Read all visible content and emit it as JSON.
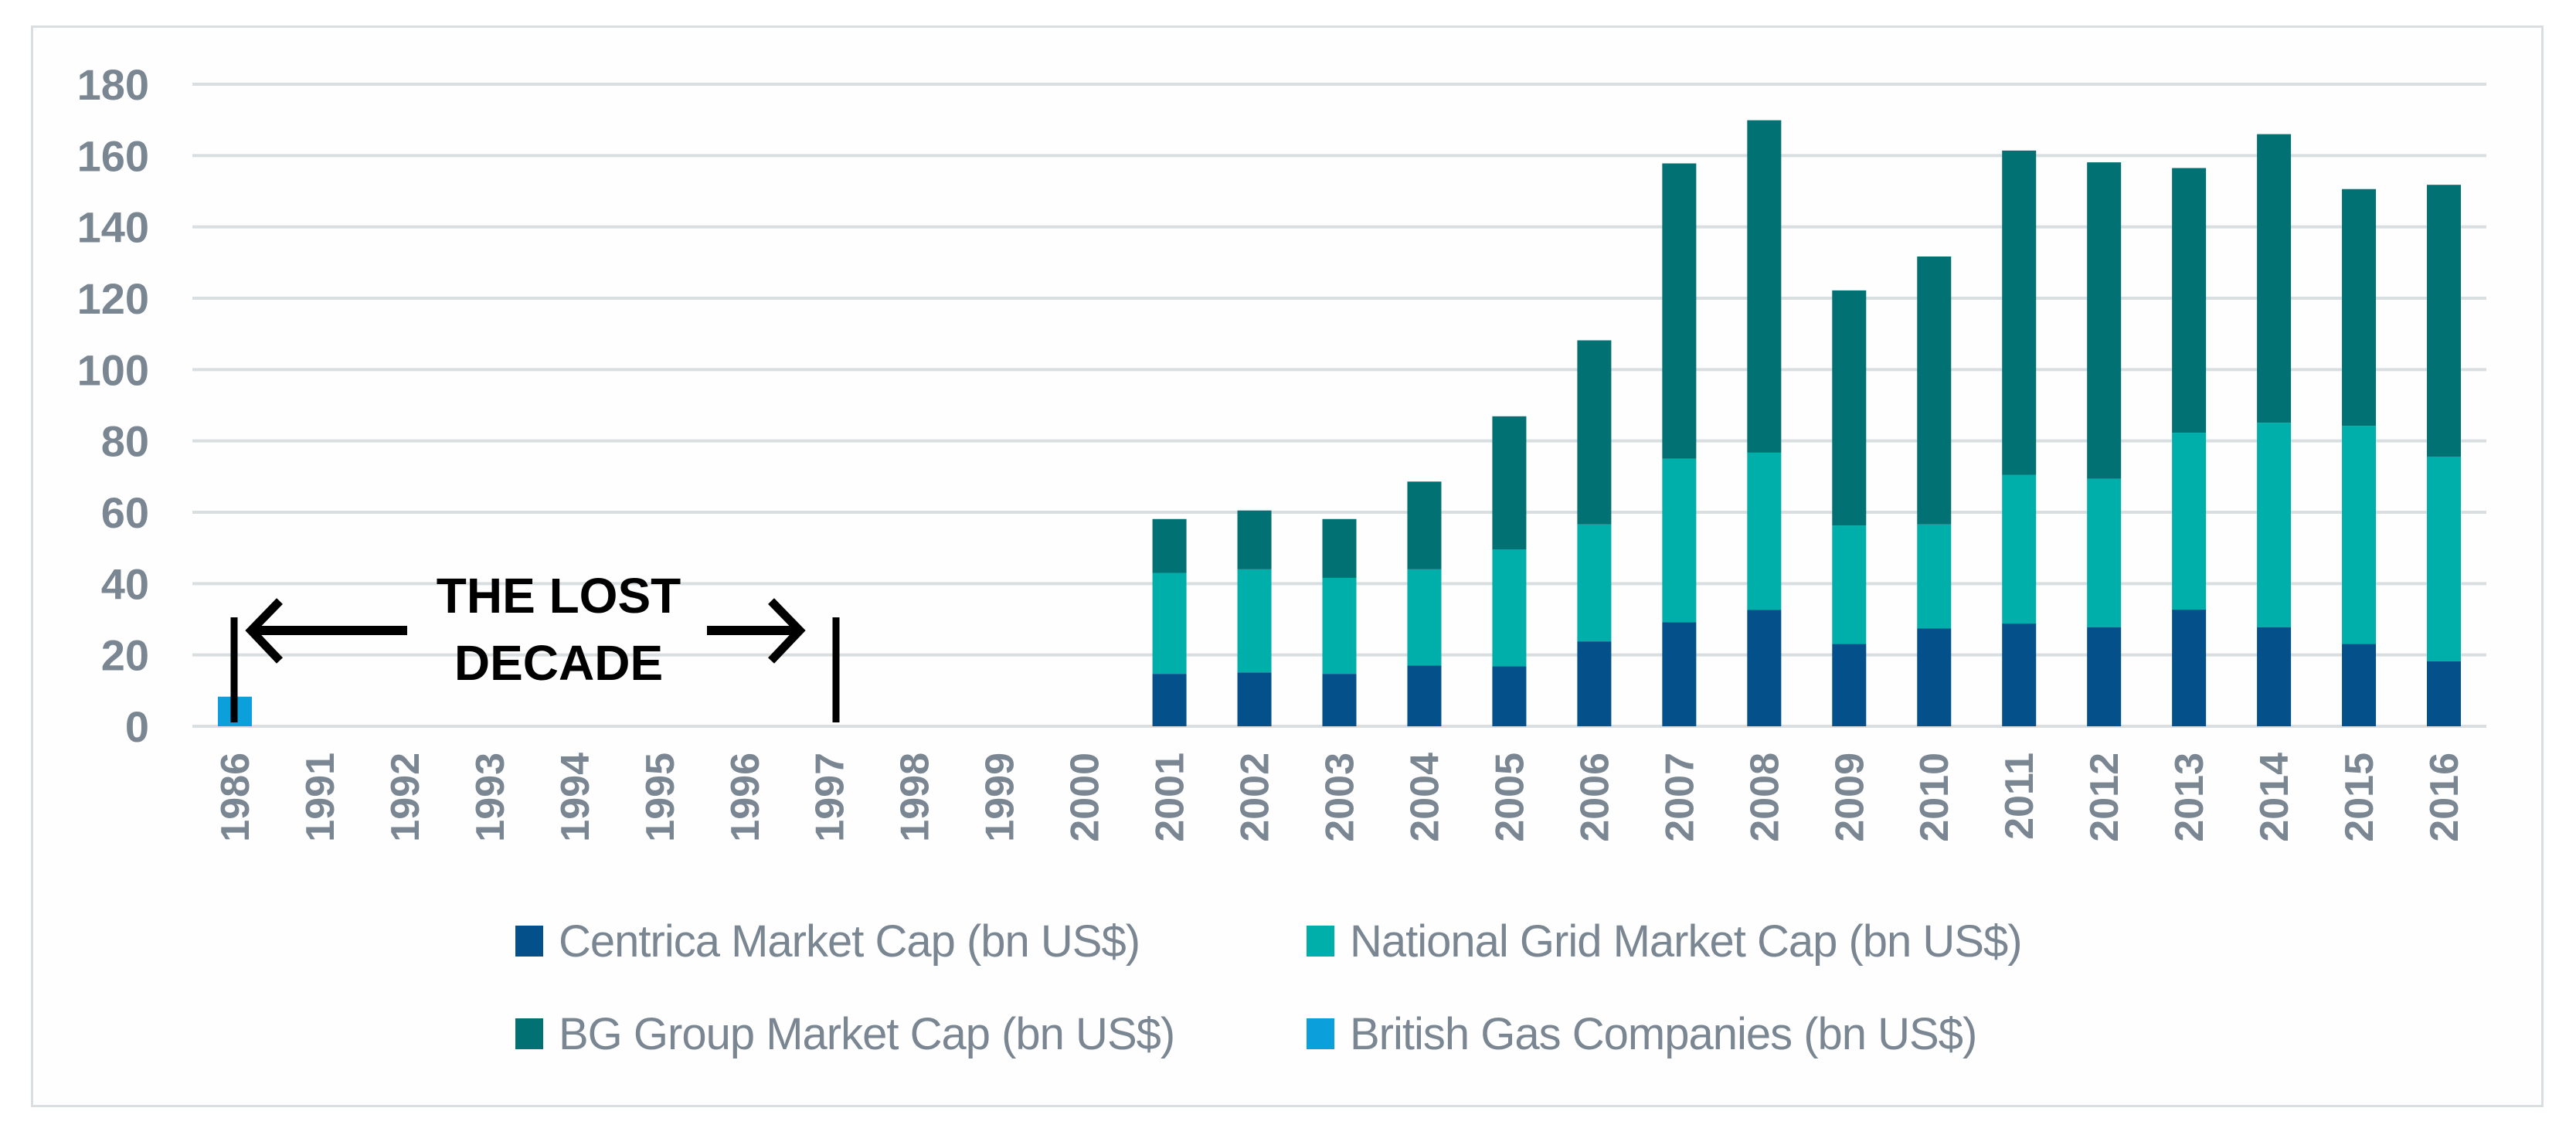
{
  "chart_data": {
    "type": "bar",
    "stacked": true,
    "title": "",
    "xlabel": "",
    "ylabel": "",
    "ylim": [
      0,
      180
    ],
    "yticks": [
      0,
      20,
      40,
      60,
      80,
      100,
      120,
      140,
      160,
      180
    ],
    "grid": true,
    "legend_position": "bottom",
    "categories": [
      "1986",
      "1991",
      "1992",
      "1993",
      "1994",
      "1995",
      "1996",
      "1997",
      "1998",
      "1999",
      "2000",
      "2001",
      "2002",
      "2003",
      "2004",
      "2005",
      "2006",
      "2007",
      "2008",
      "2009",
      "2010",
      "2011",
      "2012",
      "2013",
      "2014",
      "2015",
      "2016"
    ],
    "series": [
      {
        "name": "Centrica Market Cap (bn US$)",
        "color": "#03508b",
        "values": [
          0,
          0,
          0,
          0,
          0,
          0,
          0,
          0,
          0,
          0,
          0,
          14.7,
          15.1,
          14.7,
          17.0,
          16.8,
          23.8,
          29.2,
          32.6,
          23.1,
          27.4,
          28.8,
          27.8,
          32.7,
          27.8,
          23.1,
          18.2
        ]
      },
      {
        "name": "National Grid Market Cap (bn US$)",
        "color": "#00aeaa",
        "values": [
          0,
          0,
          0,
          0,
          0,
          0,
          0,
          0,
          0,
          0,
          0,
          28.3,
          28.9,
          26.9,
          27.0,
          32.8,
          32.8,
          45.8,
          44.1,
          33.2,
          29.2,
          41.7,
          41.6,
          49.6,
          57.3,
          61.1,
          57.4
        ]
      },
      {
        "name": "BG Group Market Cap (bn US$)",
        "color": "#027174",
        "values": [
          0,
          0,
          0,
          0,
          0,
          0,
          0,
          0,
          0,
          0,
          0,
          15.1,
          16.5,
          16.5,
          24.6,
          37.3,
          51.6,
          82.8,
          93.2,
          65.9,
          75.1,
          90.9,
          88.7,
          74.2,
          80.9,
          66.4,
          76.2
        ]
      },
      {
        "name": "British Gas Companies (bn US$)",
        "color": "#0ba0db",
        "values": [
          8.3,
          0,
          0,
          0,
          0,
          0,
          0,
          0,
          0,
          0,
          0,
          0,
          0,
          0,
          0,
          0,
          0,
          0,
          0,
          0,
          0,
          0,
          0,
          0,
          0,
          0,
          0
        ]
      }
    ],
    "totals": [
      8.3,
      0,
      0,
      0,
      0,
      0,
      0,
      0,
      0,
      0,
      0,
      58.1,
      60.5,
      58.1,
      68.6,
      86.9,
      108.2,
      157.8,
      169.9,
      122.2,
      131.7,
      161.4,
      158.1,
      156.5,
      166.0,
      150.6,
      151.8
    ],
    "annotations": [
      {
        "text_lines": [
          "THE LOST",
          "DECADE"
        ],
        "from_category": "1986",
        "to_category": "1997",
        "style": "double-arrow-span"
      }
    ]
  },
  "legend": {
    "items": [
      {
        "label": "Centrica Market Cap (bn US$)",
        "color": "#03508b"
      },
      {
        "label": "National Grid Market Cap (bn US$)",
        "color": "#00aeaa"
      },
      {
        "label": "BG Group Market Cap (bn US$)",
        "color": "#027174"
      },
      {
        "label": "British Gas Companies (bn US$)",
        "color": "#0ba0db"
      }
    ]
  },
  "colors": {
    "text": "#7a8793",
    "grid": "#d9dee0",
    "frame": "#d9dee0",
    "annotation": "#000000"
  }
}
